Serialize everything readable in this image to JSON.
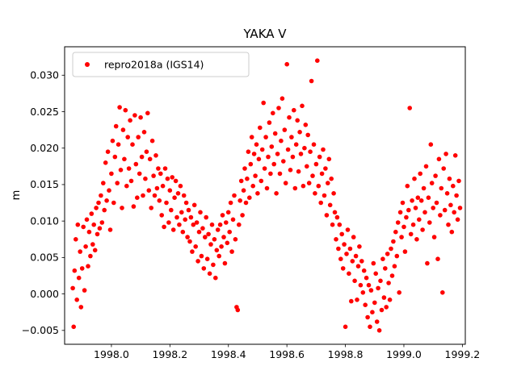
{
  "chart_data": {
    "type": "scatter",
    "title": "YAKA V",
    "xlabel": "",
    "ylabel": "m",
    "series_name": "repro2018a (IGS14)",
    "marker_color": "#ff0000",
    "grid": false,
    "legend_position": "upper left",
    "xlim": [
      1997.84,
      1999.21
    ],
    "ylim": [
      -0.0069,
      0.0339
    ],
    "xticks": [
      1998.0,
      1998.2,
      1998.4,
      1998.6,
      1998.8,
      1999.0,
      1999.2
    ],
    "xtick_labels": [
      "1998.0",
      "1998.2",
      "1998.4",
      "1998.6",
      "1998.8",
      "1999.0",
      "1999.2"
    ],
    "yticks": [
      -0.005,
      0.0,
      0.005,
      0.01,
      0.015,
      0.02,
      0.025,
      0.03
    ],
    "ytick_labels": [
      "−0.005",
      "0.000",
      "0.005",
      "0.010",
      "0.015",
      "0.020",
      "0.025",
      "0.030"
    ],
    "points": [
      [
        1997.868,
        0.0008
      ],
      [
        1997.871,
        -0.0045
      ],
      [
        1997.874,
        0.0032
      ],
      [
        1997.878,
        0.0075
      ],
      [
        1997.882,
        -0.0008
      ],
      [
        1997.885,
        0.0095
      ],
      [
        1997.889,
        0.0022
      ],
      [
        1997.893,
        0.0058
      ],
      [
        1997.896,
        -0.0018
      ],
      [
        1997.9,
        0.0035
      ],
      [
        1997.904,
        0.0092
      ],
      [
        1997.908,
        0.0005
      ],
      [
        1997.912,
        0.0065
      ],
      [
        1997.916,
        0.0102
      ],
      [
        1997.92,
        0.0038
      ],
      [
        1997.924,
        0.0085
      ],
      [
        1997.928,
        0.0052
      ],
      [
        1997.932,
        0.011
      ],
      [
        1997.936,
        0.0068
      ],
      [
        1997.94,
        0.0095
      ],
      [
        1997.944,
        0.006
      ],
      [
        1997.948,
        0.0118
      ],
      [
        1997.952,
        0.0082
      ],
      [
        1997.956,
        0.0125
      ],
      [
        1997.96,
        0.009
      ],
      [
        1997.964,
        0.0135
      ],
      [
        1997.968,
        0.0098
      ],
      [
        1997.972,
        0.0152
      ],
      [
        1997.976,
        0.0115
      ],
      [
        1997.98,
        0.018
      ],
      [
        1997.984,
        0.0128
      ],
      [
        1997.988,
        0.0195
      ],
      [
        1997.992,
        0.0142
      ],
      [
        1997.996,
        0.0088
      ],
      [
        1998.0,
        0.0165
      ],
      [
        1998.004,
        0.021
      ],
      [
        1998.008,
        0.0125
      ],
      [
        1998.012,
        0.0188
      ],
      [
        1998.016,
        0.023
      ],
      [
        1998.02,
        0.0152
      ],
      [
        1998.024,
        0.0205
      ],
      [
        1998.028,
        0.0256
      ],
      [
        1998.032,
        0.017
      ],
      [
        1998.036,
        0.0118
      ],
      [
        1998.04,
        0.0225
      ],
      [
        1998.044,
        0.0185
      ],
      [
        1998.048,
        0.0252
      ],
      [
        1998.052,
        0.0148
      ],
      [
        1998.056,
        0.0215
      ],
      [
        1998.06,
        0.0172
      ],
      [
        1998.064,
        0.0238
      ],
      [
        1998.068,
        0.0155
      ],
      [
        1998.072,
        0.0205
      ],
      [
        1998.076,
        0.012
      ],
      [
        1998.08,
        0.0245
      ],
      [
        1998.084,
        0.0178
      ],
      [
        1998.088,
        0.0132
      ],
      [
        1998.092,
        0.0215
      ],
      [
        1998.096,
        0.0165
      ],
      [
        1998.1,
        0.0242
      ],
      [
        1998.104,
        0.0188
      ],
      [
        1998.108,
        0.0135
      ],
      [
        1998.112,
        0.0222
      ],
      [
        1998.116,
        0.0158
      ],
      [
        1998.12,
        0.0195
      ],
      [
        1998.124,
        0.0248
      ],
      [
        1998.128,
        0.0142
      ],
      [
        1998.132,
        0.0185
      ],
      [
        1998.136,
        0.0118
      ],
      [
        1998.14,
        0.021
      ],
      [
        1998.144,
        0.0162
      ],
      [
        1998.148,
        0.0135
      ],
      [
        1998.152,
        0.019
      ],
      [
        1998.156,
        0.0145
      ],
      [
        1998.16,
        0.0172
      ],
      [
        1998.164,
        0.0128
      ],
      [
        1998.168,
        0.0165
      ],
      [
        1998.172,
        0.0108
      ],
      [
        1998.176,
        0.0148
      ],
      [
        1998.18,
        0.0092
      ],
      [
        1998.184,
        0.0172
      ],
      [
        1998.188,
        0.0125
      ],
      [
        1998.192,
        0.0158
      ],
      [
        1998.196,
        0.0098
      ],
      [
        1998.2,
        0.0142
      ],
      [
        1998.204,
        0.0115
      ],
      [
        1998.208,
        0.016
      ],
      [
        1998.212,
        0.0088
      ],
      [
        1998.216,
        0.0132
      ],
      [
        1998.22,
        0.0155
      ],
      [
        1998.224,
        0.0105
      ],
      [
        1998.228,
        0.0138
      ],
      [
        1998.232,
        0.0095
      ],
      [
        1998.236,
        0.0148
      ],
      [
        1998.24,
        0.0112
      ],
      [
        1998.244,
        0.0085
      ],
      [
        1998.248,
        0.0135
      ],
      [
        1998.252,
        0.0102
      ],
      [
        1998.256,
        0.0125
      ],
      [
        1998.26,
        0.0078
      ],
      [
        1998.264,
        0.0115
      ],
      [
        1998.268,
        0.0072
      ],
      [
        1998.272,
        0.0105
      ],
      [
        1998.276,
        0.0058
      ],
      [
        1998.28,
        0.0095
      ],
      [
        1998.284,
        0.0122
      ],
      [
        1998.288,
        0.0065
      ],
      [
        1998.292,
        0.0098
      ],
      [
        1998.296,
        0.0045
      ],
      [
        1998.3,
        0.0085
      ],
      [
        1998.304,
        0.0112
      ],
      [
        1998.308,
        0.0052
      ],
      [
        1998.312,
        0.009
      ],
      [
        1998.316,
        0.0035
      ],
      [
        1998.32,
        0.0078
      ],
      [
        1998.324,
        0.0105
      ],
      [
        1998.328,
        0.0048
      ],
      [
        1998.332,
        0.0082
      ],
      [
        1998.336,
        0.0028
      ],
      [
        1998.34,
        0.0068
      ],
      [
        1998.344,
        0.0095
      ],
      [
        1998.348,
        0.004
      ],
      [
        1998.352,
        0.0075
      ],
      [
        1998.356,
        0.0022
      ],
      [
        1998.36,
        0.006
      ],
      [
        1998.364,
        0.0088
      ],
      [
        1998.368,
        0.0052
      ],
      [
        1998.372,
        0.0095
      ],
      [
        1998.376,
        0.0065
      ],
      [
        1998.38,
        0.0108
      ],
      [
        1998.384,
        0.0078
      ],
      [
        1998.388,
        0.0042
      ],
      [
        1998.392,
        0.0098
      ],
      [
        1998.396,
        0.007
      ],
      [
        1998.4,
        0.0112
      ],
      [
        1998.404,
        0.0085
      ],
      [
        1998.408,
        0.0125
      ],
      [
        1998.412,
        0.0058
      ],
      [
        1998.416,
        0.0102
      ],
      [
        1998.42,
        0.0135
      ],
      [
        1998.424,
        0.0075
      ],
      [
        1998.428,
        -0.0018
      ],
      [
        1998.432,
        -0.0022
      ],
      [
        1998.436,
        0.0095
      ],
      [
        1998.44,
        0.0128
      ],
      [
        1998.444,
        0.0155
      ],
      [
        1998.448,
        0.0108
      ],
      [
        1998.452,
        0.0142
      ],
      [
        1998.456,
        0.0172
      ],
      [
        1998.46,
        0.0125
      ],
      [
        1998.464,
        0.0158
      ],
      [
        1998.468,
        0.0195
      ],
      [
        1998.472,
        0.0132
      ],
      [
        1998.476,
        0.0178
      ],
      [
        1998.48,
        0.0215
      ],
      [
        1998.484,
        0.0148
      ],
      [
        1998.488,
        0.0192
      ],
      [
        1998.492,
        0.0162
      ],
      [
        1998.496,
        0.0205
      ],
      [
        1998.5,
        0.0138
      ],
      [
        1998.504,
        0.0185
      ],
      [
        1998.508,
        0.0228
      ],
      [
        1998.512,
        0.0155
      ],
      [
        1998.516,
        0.0198
      ],
      [
        1998.52,
        0.0262
      ],
      [
        1998.524,
        0.0172
      ],
      [
        1998.528,
        0.0215
      ],
      [
        1998.532,
        0.0145
      ],
      [
        1998.536,
        0.0188
      ],
      [
        1998.54,
        0.0235
      ],
      [
        1998.544,
        0.0165
      ],
      [
        1998.548,
        0.0202
      ],
      [
        1998.552,
        0.0248
      ],
      [
        1998.556,
        0.0178
      ],
      [
        1998.56,
        0.022
      ],
      [
        1998.564,
        0.0138
      ],
      [
        1998.568,
        0.0192
      ],
      [
        1998.572,
        0.0255
      ],
      [
        1998.576,
        0.0165
      ],
      [
        1998.58,
        0.021
      ],
      [
        1998.584,
        0.0268
      ],
      [
        1998.588,
        0.0182
      ],
      [
        1998.592,
        0.0225
      ],
      [
        1998.596,
        0.0152
      ],
      [
        1998.6,
        0.0315
      ],
      [
        1998.604,
        0.0198
      ],
      [
        1998.608,
        0.0242
      ],
      [
        1998.612,
        0.017
      ],
      [
        1998.616,
        0.0215
      ],
      [
        1998.62,
        0.0188
      ],
      [
        1998.624,
        0.0252
      ],
      [
        1998.628,
        0.0145
      ],
      [
        1998.632,
        0.0205
      ],
      [
        1998.636,
        0.0238
      ],
      [
        1998.64,
        0.0168
      ],
      [
        1998.644,
        0.0222
      ],
      [
        1998.648,
        0.0192
      ],
      [
        1998.652,
        0.0258
      ],
      [
        1998.656,
        0.0148
      ],
      [
        1998.66,
        0.02
      ],
      [
        1998.664,
        0.0232
      ],
      [
        1998.668,
        0.0175
      ],
      [
        1998.672,
        0.0218
      ],
      [
        1998.676,
        0.0152
      ],
      [
        1998.68,
        0.0195
      ],
      [
        1998.684,
        0.0292
      ],
      [
        1998.688,
        0.0162
      ],
      [
        1998.692,
        0.0205
      ],
      [
        1998.696,
        0.0138
      ],
      [
        1998.7,
        0.0178
      ],
      [
        1998.704,
        0.032
      ],
      [
        1998.708,
        0.0148
      ],
      [
        1998.712,
        0.0188
      ],
      [
        1998.716,
        0.0125
      ],
      [
        1998.72,
        0.0165
      ],
      [
        1998.724,
        0.0198
      ],
      [
        1998.728,
        0.0135
      ],
      [
        1998.732,
        0.0172
      ],
      [
        1998.736,
        0.0108
      ],
      [
        1998.74,
        0.0152
      ],
      [
        1998.744,
        0.0185
      ],
      [
        1998.748,
        0.0122
      ],
      [
        1998.752,
        0.0158
      ],
      [
        1998.756,
        0.0095
      ],
      [
        1998.76,
        0.0138
      ],
      [
        1998.764,
        0.0112
      ],
      [
        1998.768,
        0.0075
      ],
      [
        1998.772,
        0.0105
      ],
      [
        1998.776,
        0.0062
      ],
      [
        1998.78,
        0.0095
      ],
      [
        1998.784,
        0.0048
      ],
      [
        1998.788,
        0.0082
      ],
      [
        1998.792,
        0.0035
      ],
      [
        1998.796,
        0.0068
      ],
      [
        1998.8,
        -0.0045
      ],
      [
        1998.804,
        0.0055
      ],
      [
        1998.808,
        0.0088
      ],
      [
        1998.812,
        0.0028
      ],
      [
        1998.816,
        0.0062
      ],
      [
        1998.82,
        -0.001
      ],
      [
        1998.824,
        0.0045
      ],
      [
        1998.828,
        0.0078
      ],
      [
        1998.832,
        0.0018
      ],
      [
        1998.836,
        0.0052
      ],
      [
        1998.84,
        -0.0008
      ],
      [
        1998.844,
        0.0038
      ],
      [
        1998.848,
        0.0065
      ],
      [
        1998.852,
        0.0012
      ],
      [
        1998.856,
        0.0045
      ],
      [
        1998.86,
        0.0002
      ],
      [
        1998.864,
        0.0032
      ],
      [
        1998.868,
        -0.0015
      ],
      [
        1998.872,
        0.0022
      ],
      [
        1998.876,
        -0.0032
      ],
      [
        1998.88,
        0.0012
      ],
      [
        1998.884,
        -0.0045
      ],
      [
        1998.888,
        0.0005
      ],
      [
        1998.892,
        -0.0025
      ],
      [
        1998.896,
        0.0042
      ],
      [
        1998.9,
        -0.0012
      ],
      [
        1998.904,
        0.0028
      ],
      [
        1998.908,
        -0.0038
      ],
      [
        1998.912,
        0.0008
      ],
      [
        1998.916,
        -0.005
      ],
      [
        1998.92,
        0.0018
      ],
      [
        1998.924,
        -0.0022
      ],
      [
        1998.928,
        0.0048
      ],
      [
        1998.932,
        -0.0005
      ],
      [
        1998.936,
        0.0035
      ],
      [
        1998.94,
        -0.0018
      ],
      [
        1998.944,
        0.0055
      ],
      [
        1998.948,
        0.0015
      ],
      [
        1998.952,
        -0.0008
      ],
      [
        1998.956,
        0.0062
      ],
      [
        1998.96,
        0.0025
      ],
      [
        1998.964,
        0.0072
      ],
      [
        1998.968,
        0.0038
      ],
      [
        1998.972,
        0.0085
      ],
      [
        1998.976,
        0.0052
      ],
      [
        1998.98,
        0.0098
      ],
      [
        1998.984,
        0.0002
      ],
      [
        1998.988,
        0.0112
      ],
      [
        1998.992,
        0.0078
      ],
      [
        1998.996,
        0.0125
      ],
      [
        1999.0,
        0.0092
      ],
      [
        1999.004,
        0.0058
      ],
      [
        1999.008,
        0.0105
      ],
      [
        1999.012,
        0.0148
      ],
      [
        1999.016,
        0.0115
      ],
      [
        1999.02,
        0.0255
      ],
      [
        1999.024,
        0.0082
      ],
      [
        1999.028,
        0.0128
      ],
      [
        1999.032,
        0.0095
      ],
      [
        1999.036,
        0.0158
      ],
      [
        1999.04,
        0.0118
      ],
      [
        1999.044,
        0.0075
      ],
      [
        1999.048,
        0.0132
      ],
      [
        1999.052,
        0.0102
      ],
      [
        1999.056,
        0.0165
      ],
      [
        1999.06,
        0.0128
      ],
      [
        1999.064,
        0.0088
      ],
      [
        1999.068,
        0.0145
      ],
      [
        1999.072,
        0.0112
      ],
      [
        1999.076,
        0.0175
      ],
      [
        1999.08,
        0.0042
      ],
      [
        1999.084,
        0.0132
      ],
      [
        1999.088,
        0.0098
      ],
      [
        1999.092,
        0.0205
      ],
      [
        1999.096,
        0.0152
      ],
      [
        1999.1,
        0.0118
      ],
      [
        1999.104,
        0.0078
      ],
      [
        1999.108,
        0.0162
      ],
      [
        1999.112,
        0.0125
      ],
      [
        1999.116,
        0.0048
      ],
      [
        1999.12,
        0.0185
      ],
      [
        1999.124,
        0.0108
      ],
      [
        1999.128,
        0.0145
      ],
      [
        1999.132,
        0.0002
      ],
      [
        1999.136,
        0.0172
      ],
      [
        1999.14,
        0.0115
      ],
      [
        1999.144,
        0.0192
      ],
      [
        1999.148,
        0.0138
      ],
      [
        1999.152,
        0.0095
      ],
      [
        1999.156,
        0.0158
      ],
      [
        1999.16,
        0.0122
      ],
      [
        1999.164,
        0.0085
      ],
      [
        1999.168,
        0.0148
      ],
      [
        1999.172,
        0.0112
      ],
      [
        1999.176,
        0.019
      ],
      [
        1999.18,
        0.0135
      ],
      [
        1999.184,
        0.0102
      ],
      [
        1999.188,
        0.0155
      ],
      [
        1999.192,
        0.0118
      ]
    ]
  }
}
